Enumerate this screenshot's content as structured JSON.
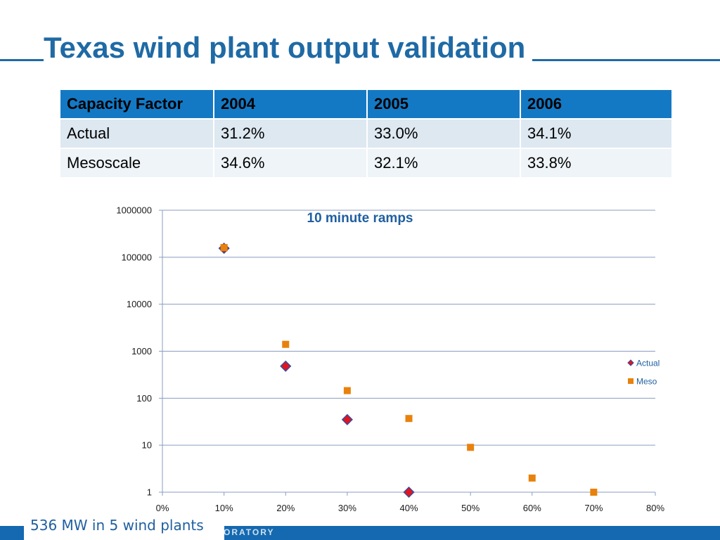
{
  "slide": {
    "title": "Texas wind plant output validation",
    "caption": "536 MW in 5 wind plants",
    "footer_text": "ORATORY"
  },
  "table": {
    "headers": [
      "Capacity Factor",
      "2004",
      "2005",
      "2006"
    ],
    "rows": [
      [
        "Actual",
        "31.2%",
        "33.0%",
        "34.1%"
      ],
      [
        "Mesoscale",
        "34.6%",
        "32.1%",
        "33.8%"
      ]
    ]
  },
  "chart_data": {
    "type": "scatter",
    "title": "10 minute ramps",
    "xlabel": "",
    "ylabel": "",
    "x_scale": "linear",
    "y_scale": "log",
    "xlim": [
      0,
      0.8
    ],
    "ylim": [
      1,
      1000000
    ],
    "x_ticks": [
      "0%",
      "10%",
      "20%",
      "30%",
      "40%",
      "50%",
      "60%",
      "70%",
      "80%"
    ],
    "y_ticks": [
      "1",
      "10",
      "100",
      "1000",
      "10000",
      "100000",
      "1000000"
    ],
    "grid": "horizontal",
    "legend_position": "right",
    "series": [
      {
        "name": "Actual",
        "marker": "diamond",
        "color": "#e3151b",
        "edge_color": "#3a4aa0",
        "x": [
          0.1,
          0.2,
          0.3,
          0.4
        ],
        "y": [
          155000,
          480,
          35,
          1
        ]
      },
      {
        "name": "Meso",
        "marker": "square",
        "color": "#e8820c",
        "x": [
          0.1,
          0.2,
          0.3,
          0.4,
          0.5,
          0.6,
          0.7
        ],
        "y": [
          160000,
          1400,
          145,
          37,
          9,
          2,
          1
        ]
      }
    ]
  }
}
